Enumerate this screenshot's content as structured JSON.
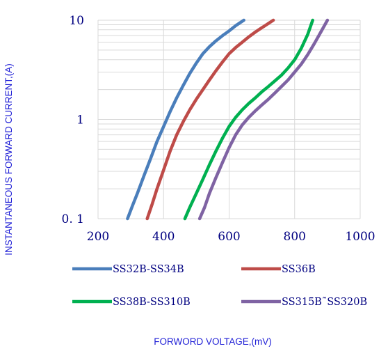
{
  "chart_data": {
    "type": "line",
    "title": "",
    "xlabel": "FORWORD VOLTAGE,(mV)",
    "ylabel": "INSTANTANEOUS FORWARD CURRENT,(A)",
    "x_scale": "linear",
    "y_scale": "log",
    "xlim": [
      200,
      1000
    ],
    "ylim": [
      0.1,
      10
    ],
    "x_ticks": [
      200,
      400,
      600,
      800,
      1000
    ],
    "x_tick_labels": [
      "200",
      "400",
      "600",
      "800",
      "1000"
    ],
    "y_ticks": [
      0.1,
      1,
      10
    ],
    "y_tick_labels": [
      "0. 1",
      "1",
      "10"
    ],
    "grid": true,
    "legend_position": "bottom",
    "series": [
      {
        "name": "SS32B-SS34B",
        "color": "#4a7ebb",
        "x": [
          290,
          305,
          320,
          340,
          360,
          380,
          400,
          420,
          440,
          460,
          480,
          500,
          520,
          540,
          560,
          580,
          600,
          620,
          645
        ],
        "y": [
          0.1,
          0.135,
          0.18,
          0.27,
          0.4,
          0.6,
          0.85,
          1.2,
          1.65,
          2.2,
          2.9,
          3.7,
          4.6,
          5.4,
          6.2,
          7.0,
          7.8,
          8.8,
          10
        ]
      },
      {
        "name": "SS36B",
        "color": "#be4b48",
        "x": [
          350,
          365,
          380,
          400,
          420,
          440,
          460,
          480,
          500,
          520,
          540,
          560,
          580,
          600,
          620,
          640,
          660,
          680,
          700,
          735
        ],
        "y": [
          0.1,
          0.14,
          0.2,
          0.31,
          0.48,
          0.7,
          0.95,
          1.25,
          1.6,
          2.0,
          2.5,
          3.1,
          3.8,
          4.6,
          5.3,
          6.0,
          6.8,
          7.6,
          8.4,
          10
        ]
      },
      {
        "name": "SS38B-SS310B",
        "color": "#00b050",
        "x": [
          465,
          480,
          500,
          520,
          540,
          560,
          580,
          600,
          620,
          640,
          660,
          680,
          700,
          720,
          740,
          760,
          780,
          800,
          820,
          840,
          855
        ],
        "y": [
          0.1,
          0.13,
          0.18,
          0.25,
          0.35,
          0.48,
          0.65,
          0.85,
          1.05,
          1.25,
          1.45,
          1.65,
          1.9,
          2.15,
          2.45,
          2.8,
          3.3,
          4.0,
          5.2,
          7.2,
          10
        ]
      },
      {
        "name": "SS315B˜SS320B",
        "color": "#7f63a3",
        "x": [
          510,
          525,
          540,
          560,
          580,
          600,
          620,
          640,
          660,
          680,
          700,
          720,
          740,
          760,
          780,
          800,
          820,
          840,
          860,
          880,
          900
        ],
        "y": [
          0.1,
          0.13,
          0.18,
          0.26,
          0.37,
          0.52,
          0.7,
          0.88,
          1.05,
          1.22,
          1.4,
          1.6,
          1.85,
          2.15,
          2.5,
          3.0,
          3.6,
          4.5,
          5.8,
          7.6,
          10
        ]
      }
    ]
  }
}
